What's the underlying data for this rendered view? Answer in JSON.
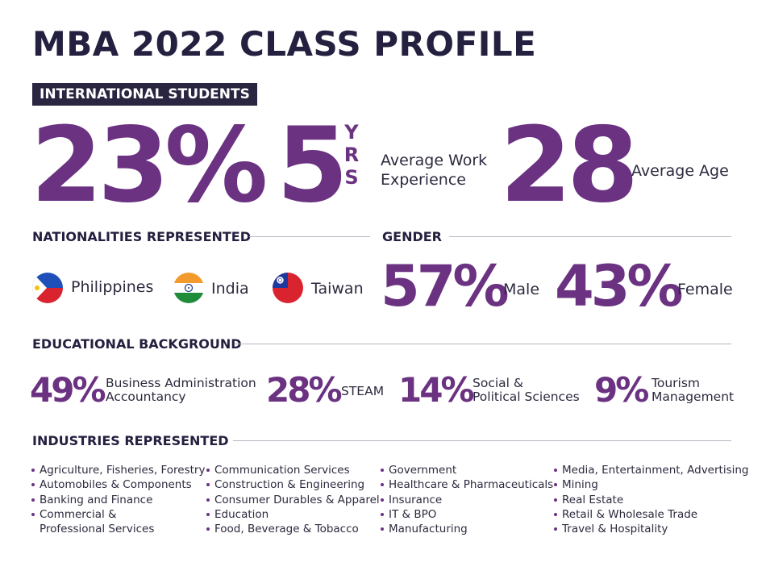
{
  "title": "MBA 2022 CLASS PROFILE",
  "badge": "INTERNATIONAL STUDENTS",
  "stats": {
    "international_pct": "23%",
    "work_years": "5",
    "yrs_letters": [
      "Y",
      "R",
      "S"
    ],
    "work_label_1": "Average Work",
    "work_label_2": "Experience",
    "age": "28",
    "age_label": "Average Age"
  },
  "nationalities": {
    "heading": "NATIONALITIES REPRESENTED",
    "countries": [
      {
        "name": "Philippines",
        "flag": "philippines-flag-icon"
      },
      {
        "name": "India",
        "flag": "india-flag-icon"
      },
      {
        "name": "Taiwan",
        "flag": "taiwan-flag-icon"
      }
    ]
  },
  "gender": {
    "heading": "GENDER",
    "male_pct": "57%",
    "male_label": "Male",
    "female_pct": "43%",
    "female_label": "Female"
  },
  "education": {
    "heading": "EDUCATIONAL BACKGROUND",
    "items": [
      {
        "pct": "49%",
        "line1": "Business Administration",
        "line2": "Accountancy"
      },
      {
        "pct": "28%",
        "line1": "STEAM",
        "line2": ""
      },
      {
        "pct": "14%",
        "line1": "Social &",
        "line2": "Political Sciences"
      },
      {
        "pct": "9%",
        "line1": "Tourism",
        "line2": "Management"
      }
    ]
  },
  "industries": {
    "heading": "INDUSTRIES REPRESENTED",
    "columns": [
      [
        "Agriculture, Fisheries, Forestry",
        "Automobiles & Components",
        "Banking and Finance",
        "Commercial &",
        "Professional Services"
      ],
      [
        "Communication Services",
        "Construction & Engineering",
        "Consumer Durables & Apparel",
        "Education",
        "Food, Beverage & Tobacco"
      ],
      [
        "Government",
        "Healthcare & Pharmaceuticals",
        "Insurance",
        "IT & BPO",
        "Manufacturing"
      ],
      [
        "Media, Entertainment, Advertising",
        "Mining",
        "Real Estate",
        "Retail & Wholesale Trade",
        "Travel & Hospitality"
      ]
    ]
  },
  "colors": {
    "accent": "#6b3282",
    "navy": "#2a2540",
    "rule": "#b8b6c2"
  }
}
